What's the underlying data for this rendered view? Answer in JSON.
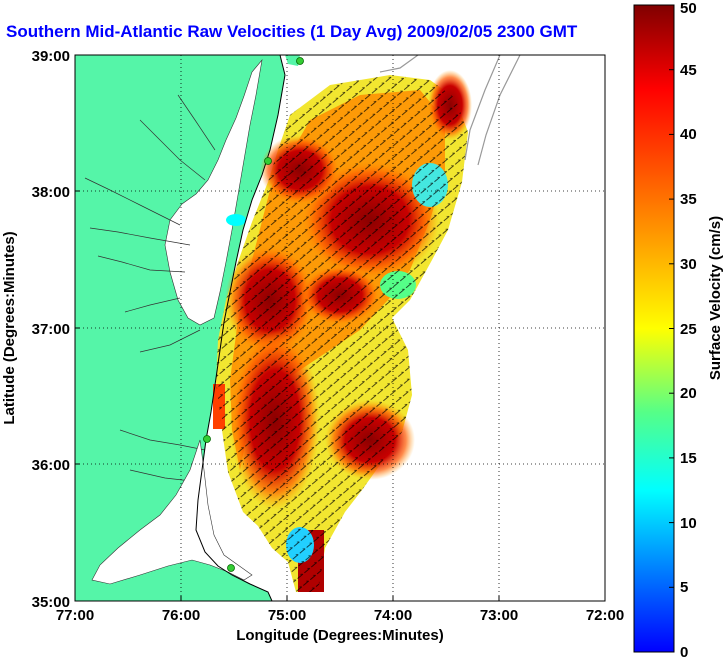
{
  "title": "Southern Mid-Atlantic Raw Velocities (1 Day Avg) 2009/02/05 2300 GMT",
  "map": {
    "xlabel": "Longitude (Degrees:Minutes)",
    "ylabel": "Latitude (Degrees:Minutes)",
    "x_ticks": [
      "77:00",
      "76:00",
      "75:00",
      "74:00",
      "73:00",
      "72:00"
    ],
    "y_ticks": [
      "39:00",
      "38:00",
      "37:00",
      "36:00",
      "35:00"
    ],
    "lon_range": [
      -77,
      -72
    ],
    "lat_range": [
      35,
      39
    ],
    "land_color": "#55f5a8",
    "grid": "dotted"
  },
  "colorbar": {
    "label": "Surface Velocity (cm/s)",
    "ticks": [
      "0",
      "5",
      "10",
      "15",
      "20",
      "25",
      "30",
      "35",
      "40",
      "45",
      "50"
    ],
    "range": [
      0,
      50
    ],
    "colormap": "jet"
  }
}
